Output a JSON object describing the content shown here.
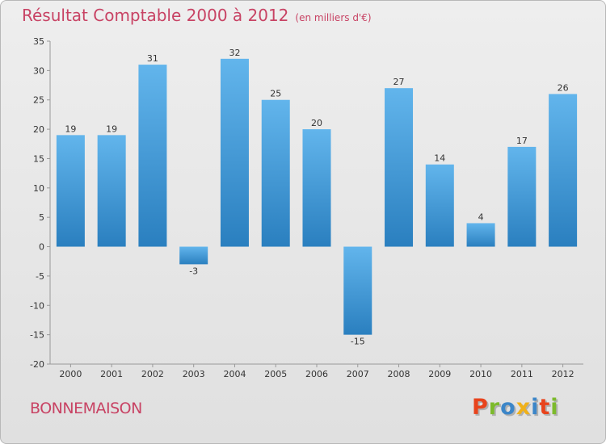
{
  "header": {
    "title": "Résultat Comptable 2000 à 2012",
    "subtitle": "(en milliers d'€)"
  },
  "footer": {
    "place": "BONNEMAISON",
    "logo": "Proxiti",
    "logo_colors": [
      "#e8431c",
      "#7cba2c",
      "#3c86c8",
      "#f0b11a",
      "#3c86c8",
      "#e8431c",
      "#7cba2c"
    ]
  },
  "colors": {
    "bar_top": "#62b5ec",
    "bar_bottom": "#2a7fbf",
    "text": "#333333",
    "brand": "#c84364"
  },
  "chart_data": {
    "type": "bar",
    "title": "Résultat Comptable 2000 à 2012",
    "xlabel": "",
    "ylabel": "",
    "categories": [
      "2000",
      "2001",
      "2002",
      "2003",
      "2004",
      "2005",
      "2006",
      "2007",
      "2008",
      "2009",
      "2010",
      "2011",
      "2012"
    ],
    "values": [
      19,
      19,
      31,
      -3,
      32,
      25,
      20,
      -15,
      27,
      14,
      4,
      17,
      26
    ],
    "ylim": [
      -20,
      35
    ],
    "yticks": [
      -20,
      -15,
      -10,
      -5,
      0,
      5,
      10,
      15,
      20,
      25,
      30,
      35
    ],
    "grid": false,
    "legend": "none"
  }
}
